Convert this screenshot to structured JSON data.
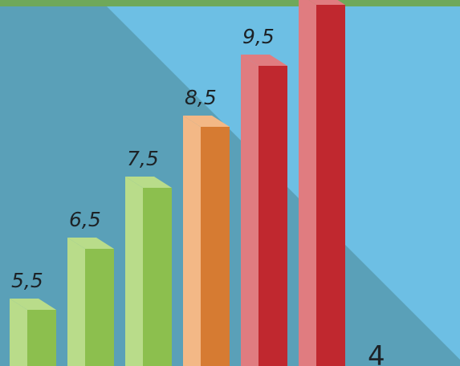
{
  "chart_data": {
    "type": "bar",
    "style": "3d",
    "values": [
      5.5,
      6.5,
      7.5,
      8.5,
      9.5,
      10.5
    ],
    "value_labels": [
      "5,5",
      "6,5",
      "7,5",
      "8,5",
      "9,5",
      ""
    ],
    "bar_colors": [
      {
        "front": "#8cbf4e",
        "side": "#b9dc8a"
      },
      {
        "front": "#8cbf4e",
        "side": "#b9dc8a"
      },
      {
        "front": "#8cbf4e",
        "side": "#b9dc8a"
      },
      {
        "front": "#d67b32",
        "side": "#f3b886"
      },
      {
        "front": "#c0282f",
        "side": "#e07c80"
      },
      {
        "front": "#c0282f",
        "side": "#e07c80"
      }
    ],
    "trailing_mark": "4",
    "grid": false,
    "legend": "none"
  },
  "colors": {
    "top_band": "#6fa85a",
    "background_dark": "#5aa0b8",
    "background_light": "#6dbfe4",
    "label": "#1d2226"
  }
}
